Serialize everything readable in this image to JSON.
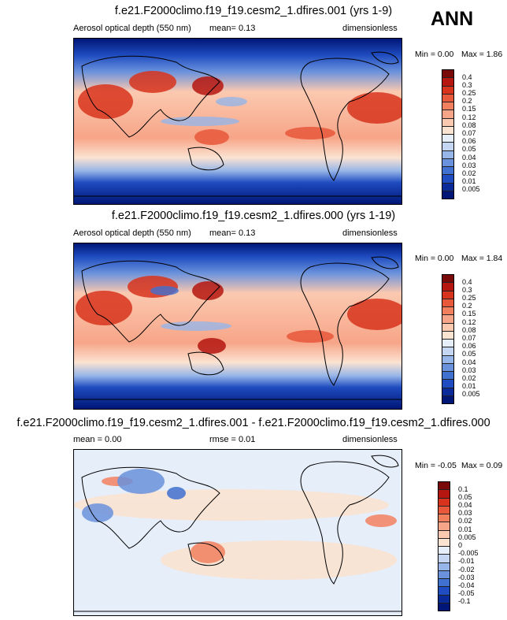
{
  "season": "ANN",
  "panels": [
    {
      "title": "f.e21.F2000climo.f19_f19.cesm2_1.dfires.001 (yrs 1-9)",
      "variable": "Aerosol optical depth (550 nm)",
      "stat1": "mean=   0.13",
      "units": "dimensionless",
      "min_label": "Min =   0.00",
      "max_label": "Max =   1.86",
      "colorbar": {
        "labels": [
          "0.4",
          "0.3",
          "0.25",
          "0.2",
          "0.15",
          "0.12",
          "0.08",
          "0.07",
          "0.06",
          "0.05",
          "0.04",
          "0.03",
          "0.02",
          "0.01",
          "0.005"
        ],
        "colors": [
          "#7a0a0a",
          "#b5160f",
          "#d8341d",
          "#e8583b",
          "#f2805f",
          "#f7a588",
          "#fbc9b0",
          "#fbe3d2",
          "#e6eefa",
          "#c4d6f2",
          "#96b5e8",
          "#6a92dc",
          "#4070d0",
          "#1f4cc0",
          "#0a2a9a",
          "#001676"
        ]
      }
    },
    {
      "title": "f.e21.F2000climo.f19_f19.cesm2_1.dfires.000 (yrs 1-19)",
      "variable": "Aerosol optical depth (550 nm)",
      "stat1": "mean=   0.13",
      "units": "dimensionless",
      "min_label": "Min =   0.00",
      "max_label": "Max =   1.84",
      "colorbar": {
        "labels": [
          "0.4",
          "0.3",
          "0.25",
          "0.2",
          "0.15",
          "0.12",
          "0.08",
          "0.07",
          "0.06",
          "0.05",
          "0.04",
          "0.03",
          "0.02",
          "0.01",
          "0.005"
        ],
        "colors": [
          "#7a0a0a",
          "#b5160f",
          "#d8341d",
          "#e8583b",
          "#f2805f",
          "#f7a588",
          "#fbc9b0",
          "#fbe3d2",
          "#e6eefa",
          "#c4d6f2",
          "#96b5e8",
          "#6a92dc",
          "#4070d0",
          "#1f4cc0",
          "#0a2a9a",
          "#001676"
        ]
      }
    },
    {
      "title": "f.e21.F2000climo.f19_f19.cesm2_1.dfires.001 - f.e21.F2000climo.f19_f19.cesm2_1.dfires.000",
      "stat1": "mean =   0.00",
      "stat2": "rmse =   0.01",
      "units": "dimensionless",
      "min_label": "Min =  -0.05",
      "max_label": "Max =   0.09",
      "colorbar": {
        "labels": [
          "0.1",
          "0.05",
          "0.04",
          "0.03",
          "0.02",
          "0.01",
          "0.005",
          "0",
          "-0.005",
          "-0.01",
          "-0.02",
          "-0.03",
          "-0.04",
          "-0.05",
          "-0.1"
        ],
        "colors": [
          "#7a0a0a",
          "#b5160f",
          "#d8341d",
          "#e8583b",
          "#f2805f",
          "#f7a588",
          "#fbc9b0",
          "#fbe3d2",
          "#e6eefa",
          "#c4d6f2",
          "#96b5e8",
          "#6a92dc",
          "#4070d0",
          "#1f4cc0",
          "#0a2a9a",
          "#001676"
        ]
      }
    }
  ]
}
